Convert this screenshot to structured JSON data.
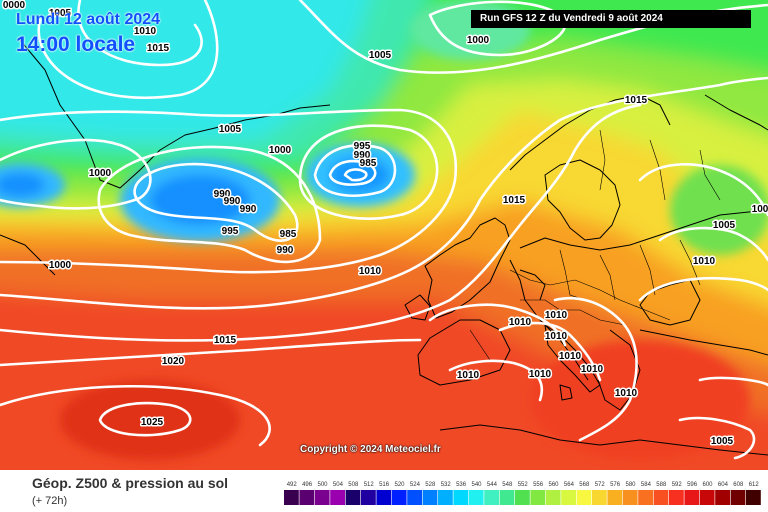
{
  "header": {
    "date": "Lundi 12 août 2024",
    "local_time": "14:00 locale",
    "run_info": "Run GFS 12 Z du Vendredi 9 août 2024"
  },
  "footer": {
    "copyright": "Copyright © 2024 Meteociel.fr",
    "field_title": "Géop. Z500 & pression au sol",
    "forecast_step": "(+ 72h)"
  },
  "scale": {
    "ticks": [
      "492",
      "496",
      "500",
      "504",
      "508",
      "512",
      "516",
      "520",
      "524",
      "528",
      "532",
      "536",
      "540",
      "544",
      "548",
      "552",
      "556",
      "560",
      "564",
      "568",
      "572",
      "576",
      "580",
      "584",
      "588",
      "592",
      "596",
      "600",
      "604",
      "608",
      "612"
    ],
    "colors": [
      "#3a0050",
      "#5a0070",
      "#7a0090",
      "#9a00b0",
      "#1a006a",
      "#2000a0",
      "#0000d0",
      "#0020ff",
      "#0050ff",
      "#0080ff",
      "#00b0ff",
      "#00d8ff",
      "#20f0f0",
      "#40f0c0",
      "#40e890",
      "#50e050",
      "#80e840",
      "#b0f040",
      "#d8f840",
      "#f8f840",
      "#f8d830",
      "#f8b020",
      "#f89020",
      "#f87020",
      "#f85020",
      "#f83020",
      "#e81818",
      "#c80808",
      "#a00000",
      "#700000",
      "#400000"
    ]
  },
  "isobars": [
    {
      "label": "1005",
      "map": [
        60,
        12
      ]
    },
    {
      "label": "1010",
      "map": [
        145,
        30
      ]
    },
    {
      "label": "1015",
      "map": [
        158,
        47
      ]
    },
    {
      "label": "1000",
      "map": [
        478,
        39
      ]
    },
    {
      "label": "1005",
      "map": [
        380,
        54
      ]
    },
    {
      "label": "1005",
      "map": [
        230,
        128
      ]
    },
    {
      "label": "1000",
      "map": [
        280,
        149
      ]
    },
    {
      "label": "995",
      "map": [
        362,
        145
      ]
    },
    {
      "label": "990",
      "map": [
        362,
        154
      ]
    },
    {
      "label": "985",
      "map": [
        368,
        162
      ]
    },
    {
      "label": "1000",
      "map": [
        100,
        172
      ]
    },
    {
      "label": "990",
      "map": [
        222,
        193
      ]
    },
    {
      "label": "990",
      "map": [
        232,
        200
      ]
    },
    {
      "label": "990",
      "map": [
        248,
        208
      ]
    },
    {
      "label": "995",
      "map": [
        230,
        230
      ]
    },
    {
      "label": "985",
      "map": [
        288,
        233
      ]
    },
    {
      "label": "990",
      "map": [
        285,
        249
      ]
    },
    {
      "label": "1000",
      "map": [
        60,
        264
      ]
    },
    {
      "label": "1010",
      "map": [
        370,
        270
      ]
    },
    {
      "label": "1015",
      "map": [
        636,
        99
      ]
    },
    {
      "label": "1015",
      "map": [
        514,
        199
      ]
    },
    {
      "label": "1005",
      "map": [
        724,
        224
      ]
    },
    {
      "label": "1010",
      "map": [
        704,
        260
      ]
    },
    {
      "label": "1015",
      "map": [
        225,
        339
      ]
    },
    {
      "label": "1010",
      "map": [
        520,
        321
      ]
    },
    {
      "label": "1010",
      "map": [
        556,
        314
      ]
    },
    {
      "label": "1010",
      "map": [
        556,
        335
      ]
    },
    {
      "label": "1010",
      "map": [
        570,
        355
      ]
    },
    {
      "label": "1010",
      "map": [
        592,
        368
      ]
    },
    {
      "label": "1010",
      "map": [
        540,
        373
      ]
    },
    {
      "label": "1010",
      "map": [
        468,
        374
      ]
    },
    {
      "label": "1010",
      "map": [
        626,
        392
      ]
    },
    {
      "label": "1020",
      "map": [
        173,
        360
      ]
    },
    {
      "label": "1025",
      "map": [
        152,
        421
      ]
    },
    {
      "label": "1005",
      "map": [
        722,
        440
      ]
    },
    {
      "label": "100",
      "map": [
        760,
        208
      ]
    },
    {
      "label": "0000",
      "map": [
        14,
        4
      ]
    }
  ],
  "colors": {
    "background_ocean_south": "#f04a28",
    "label_blue": "#1050ff",
    "isobar_line": "#ffffff",
    "coastline": "#000000"
  }
}
